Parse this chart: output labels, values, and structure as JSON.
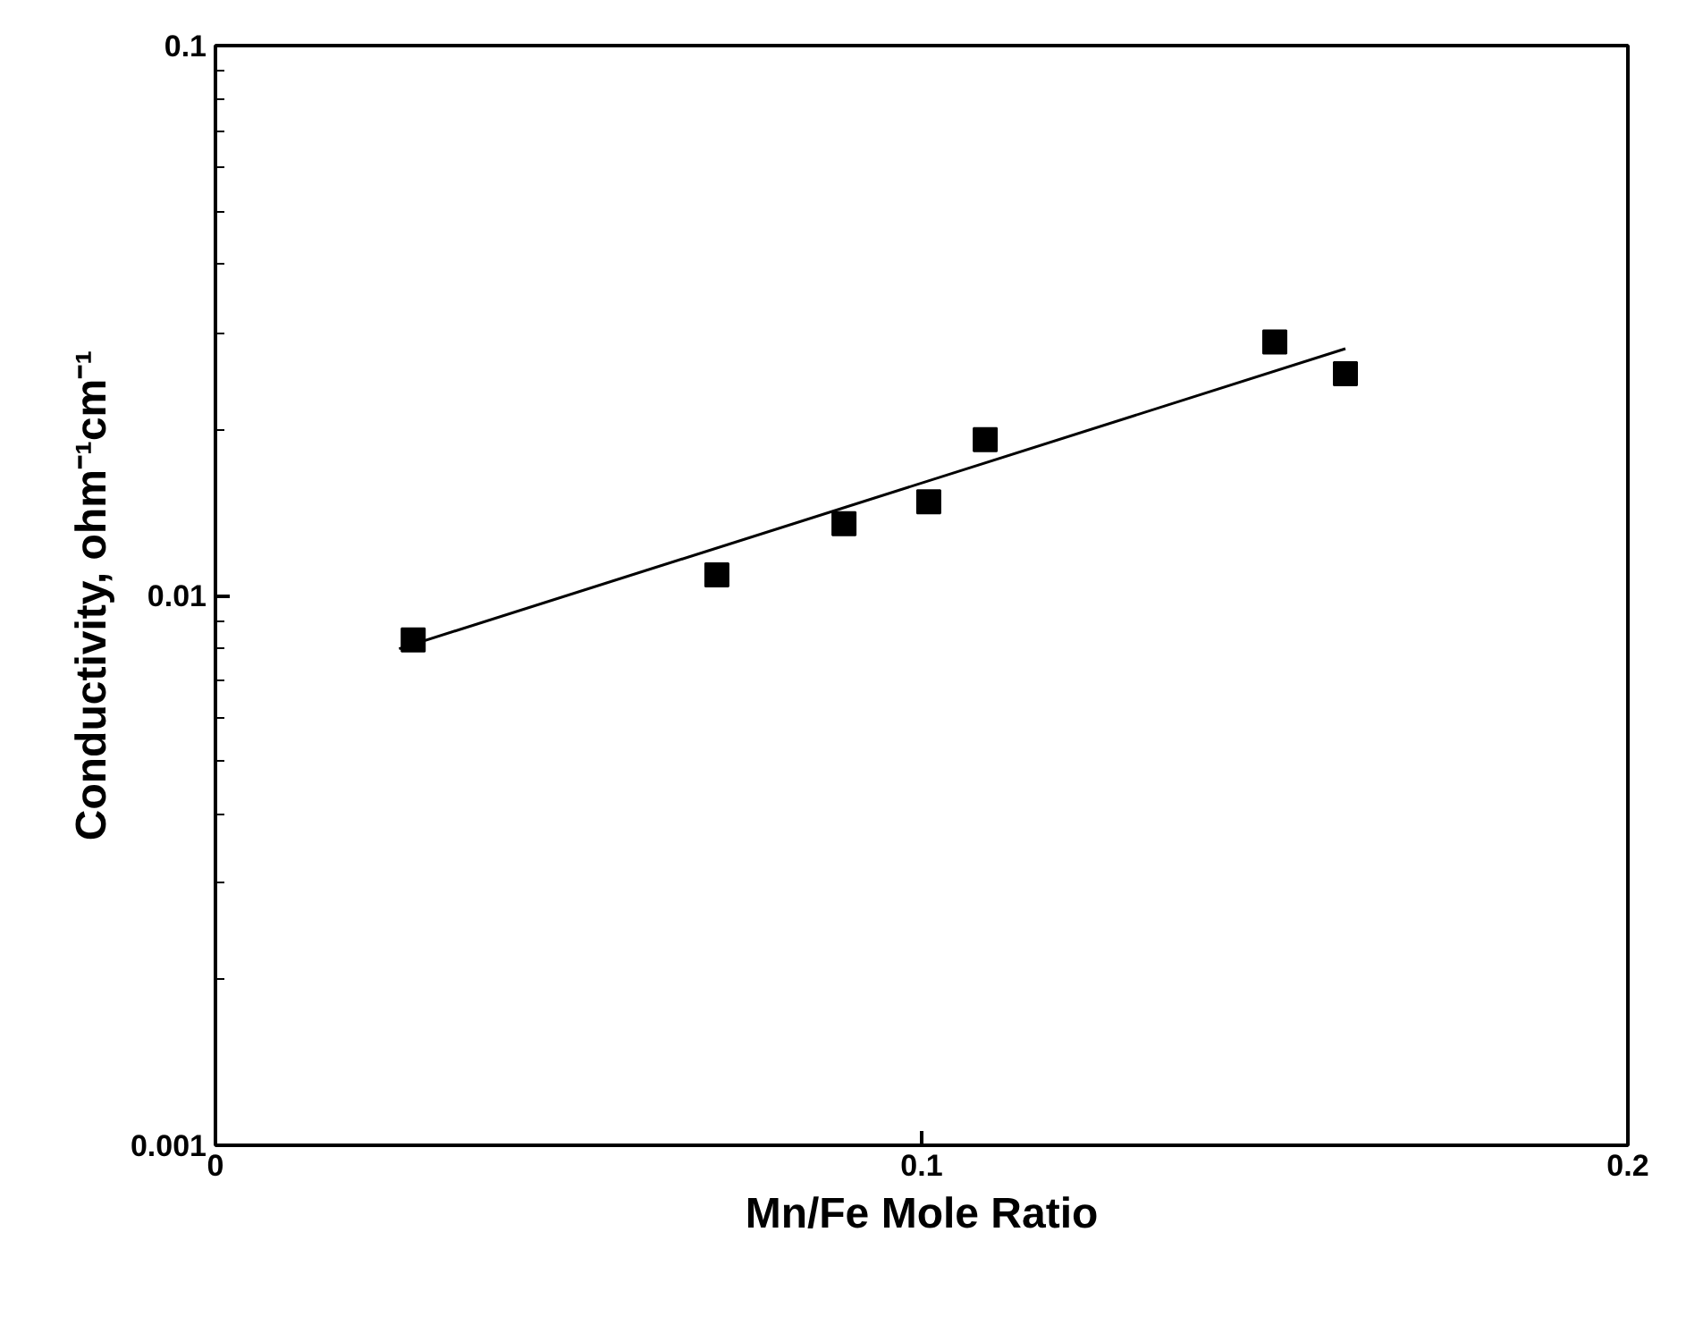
{
  "chart_data": {
    "type": "scatter",
    "xlabel": "Mn/Fe Mole Ratio",
    "ylabel": "Conductivity, ohm⁻¹cm⁻¹",
    "log": "y",
    "xlim": [
      0,
      0.2
    ],
    "ylim": [
      0.001,
      0.1
    ],
    "xticks": [
      0,
      0.1,
      0.2
    ],
    "yticks": [
      0.001,
      0.01,
      0.1
    ],
    "grid": false,
    "marker": "square",
    "series": [
      {
        "color": "#000000",
        "x": [
          0.028,
          0.071,
          0.089,
          0.101,
          0.109,
          0.15,
          0.16
        ],
        "values": [
          0.0083,
          0.0109,
          0.0135,
          0.0148,
          0.0192,
          0.0289,
          0.0253
        ]
      },
      {
        "type": "line",
        "color": "#000000",
        "line_style": "solid",
        "marker": "none",
        "x": [
          0.026,
          0.16
        ],
        "values": [
          0.008,
          0.0281
        ]
      }
    ]
  }
}
